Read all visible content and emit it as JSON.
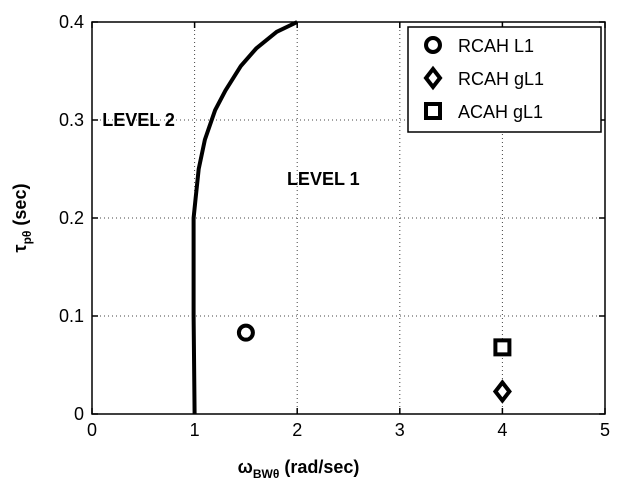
{
  "chart_data": {
    "type": "scatter",
    "x_axis": {
      "label_main": "ω",
      "label_sub": "BWθ",
      "label_rest": " (rad/sec)",
      "range": [
        0,
        5
      ],
      "ticks": [
        0,
        1,
        2,
        3,
        4,
        5
      ]
    },
    "y_axis": {
      "label_main": "τ",
      "label_sub": "pθ",
      "label_rest": " (sec)",
      "range": [
        0,
        0.4
      ],
      "ticks": [
        0,
        0.1,
        0.2,
        0.3,
        0.4
      ],
      "tick_labels": [
        "0",
        "0.1",
        "0.2",
        "0.3",
        "0.4"
      ]
    },
    "grid": true,
    "grid_style": "dotted",
    "legend_position": "top-right",
    "series": [
      {
        "name": "RCAH L1",
        "marker": "circle",
        "points": [
          [
            1.5,
            0.083
          ]
        ]
      },
      {
        "name": "RCAH gL1",
        "marker": "diamond",
        "points": [
          [
            4.0,
            0.023
          ]
        ]
      },
      {
        "name": "ACAH gL1",
        "marker": "square",
        "points": [
          [
            4.0,
            0.068
          ]
        ]
      }
    ],
    "boundary_line": {
      "points": [
        [
          1.0,
          0.0
        ],
        [
          0.99,
          0.1
        ],
        [
          0.99,
          0.2
        ],
        [
          1.01,
          0.22
        ],
        [
          1.04,
          0.25
        ],
        [
          1.1,
          0.28
        ],
        [
          1.2,
          0.31
        ],
        [
          1.3,
          0.33
        ],
        [
          1.45,
          0.355
        ],
        [
          1.6,
          0.373
        ],
        [
          1.8,
          0.39
        ],
        [
          2.0,
          0.4
        ]
      ]
    },
    "region_labels": [
      {
        "text": "LEVEL 2",
        "x": 0.1,
        "y": 0.3
      },
      {
        "text": "LEVEL 1",
        "x": 1.9,
        "y": 0.24
      }
    ]
  }
}
